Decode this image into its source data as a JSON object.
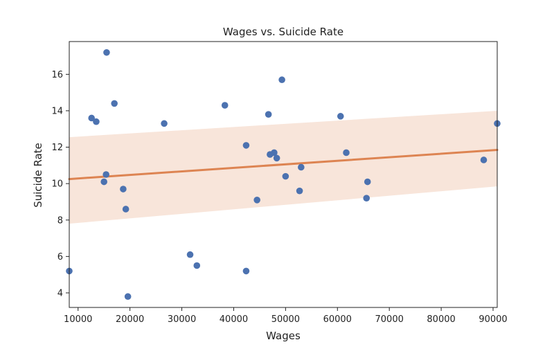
{
  "chart_data": {
    "type": "scatter",
    "title": "Wages vs. Suicide Rate",
    "xlabel": "Wages",
    "ylabel": "Suicide Rate",
    "xlim": [
      8300,
      90800
    ],
    "ylim": [
      3.2,
      17.8
    ],
    "xticks": [
      10000,
      20000,
      30000,
      40000,
      50000,
      60000,
      70000,
      80000,
      90000
    ],
    "yticks": [
      4,
      6,
      8,
      10,
      12,
      14,
      16
    ],
    "grid": false,
    "points": [
      {
        "x": 8300,
        "y": 5.2
      },
      {
        "x": 12600,
        "y": 13.6
      },
      {
        "x": 13500,
        "y": 13.4
      },
      {
        "x": 15000,
        "y": 10.1
      },
      {
        "x": 15400,
        "y": 10.5
      },
      {
        "x": 15500,
        "y": 17.2
      },
      {
        "x": 17000,
        "y": 14.4
      },
      {
        "x": 18700,
        "y": 9.7
      },
      {
        "x": 19200,
        "y": 8.6
      },
      {
        "x": 19600,
        "y": 3.8
      },
      {
        "x": 26600,
        "y": 13.3
      },
      {
        "x": 31600,
        "y": 6.1
      },
      {
        "x": 32900,
        "y": 5.5
      },
      {
        "x": 38300,
        "y": 14.3
      },
      {
        "x": 42400,
        "y": 12.1
      },
      {
        "x": 42400,
        "y": 5.2
      },
      {
        "x": 44500,
        "y": 9.1
      },
      {
        "x": 46700,
        "y": 13.8
      },
      {
        "x": 47000,
        "y": 11.6
      },
      {
        "x": 47800,
        "y": 11.7
      },
      {
        "x": 48300,
        "y": 11.4
      },
      {
        "x": 49300,
        "y": 15.7
      },
      {
        "x": 50000,
        "y": 10.4
      },
      {
        "x": 52700,
        "y": 9.6
      },
      {
        "x": 53000,
        "y": 10.9
      },
      {
        "x": 60600,
        "y": 13.7
      },
      {
        "x": 61700,
        "y": 11.7
      },
      {
        "x": 65600,
        "y": 9.2
      },
      {
        "x": 65800,
        "y": 10.1
      },
      {
        "x": 88200,
        "y": 11.3
      },
      {
        "x": 90800,
        "y": 13.3
      }
    ],
    "regression": {
      "x": [
        8300,
        90800
      ],
      "y": [
        10.25,
        11.85
      ],
      "ci_lower": [
        7.8,
        9.85
      ],
      "ci_upper": [
        12.55,
        14.0
      ]
    },
    "colors": {
      "points": "#4c72b0",
      "line": "#dd8452",
      "band": "#f8e5da"
    }
  }
}
